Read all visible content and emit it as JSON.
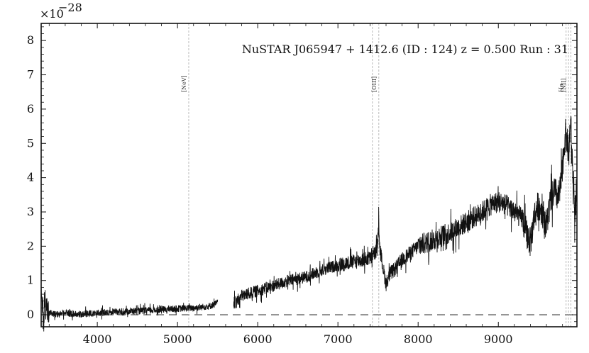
{
  "chart_data": {
    "type": "line",
    "title": "NuSTAR J065947 + 1412.6 (ID : 124)   z = 0.500   Run : 31",
    "scale_label": "×10",
    "scale_exponent": "−28",
    "xlabel": "",
    "ylabel": "",
    "xlim": [
      3300,
      9980
    ],
    "ylim": [
      -0.35,
      8.5
    ],
    "xticks": [
      4000,
      5000,
      6000,
      7000,
      8000,
      9000
    ],
    "xtick_labels": [
      "4000",
      "5000",
      "6000",
      "7000",
      "8000",
      "9000"
    ],
    "yticks": [
      0,
      1,
      2,
      3,
      4,
      5,
      6,
      7,
      8
    ],
    "ytick_labels": [
      "0",
      "1",
      "2",
      "3",
      "4",
      "5",
      "6",
      "7",
      "8"
    ],
    "grid": false,
    "zero_line": 0,
    "emission_lines": [
      {
        "label": "[NeV]",
        "x": 5140
      },
      {
        "label": "",
        "x": 7430
      },
      {
        "label": "[OIII]",
        "x": 7510
      },
      {
        "label": "Hα",
        "x": 9845
      },
      {
        "label": "[NII]",
        "x": 9875
      },
      {
        "label": "",
        "x": 9905
      }
    ],
    "series": [
      {
        "x": [
          3300,
          3330,
          3360,
          3400,
          3500,
          3600,
          3800,
          4000,
          4200,
          4400,
          4600,
          4800,
          5000,
          5200,
          5400,
          5500,
          5700,
          5800,
          6000,
          6200,
          6400,
          6600,
          6800,
          7000,
          7200,
          7400,
          7450,
          7480,
          7500,
          7510,
          7520,
          7560,
          7600,
          7650,
          7700,
          7800,
          8000,
          8200,
          8400,
          8600,
          8800,
          8900,
          9000,
          9100,
          9200,
          9300,
          9350,
          9400,
          9450,
          9500,
          9550,
          9600,
          9650,
          9700,
          9750,
          9780,
          9800,
          9820,
          9840,
          9860,
          9880,
          9900,
          9920,
          9950,
          9980
        ],
        "values": [
          0.7,
          -0.25,
          0.2,
          0.05,
          0.0,
          0.05,
          0.02,
          0.05,
          0.08,
          0.1,
          0.12,
          0.15,
          0.18,
          0.2,
          0.25,
          0.35,
          0.3,
          0.55,
          0.7,
          0.85,
          1.0,
          1.1,
          1.3,
          1.45,
          1.55,
          1.65,
          1.75,
          1.9,
          2.25,
          2.8,
          2.0,
          1.4,
          0.9,
          1.2,
          1.3,
          1.6,
          2.0,
          2.2,
          2.4,
          2.7,
          3.0,
          3.2,
          3.3,
          3.2,
          3.0,
          2.8,
          2.4,
          2.1,
          2.9,
          3.2,
          3.0,
          2.6,
          3.3,
          3.6,
          3.4,
          3.8,
          4.2,
          4.9,
          5.3,
          5.0,
          4.6,
          5.8,
          4.6,
          3.0,
          3.4
        ]
      }
    ]
  }
}
